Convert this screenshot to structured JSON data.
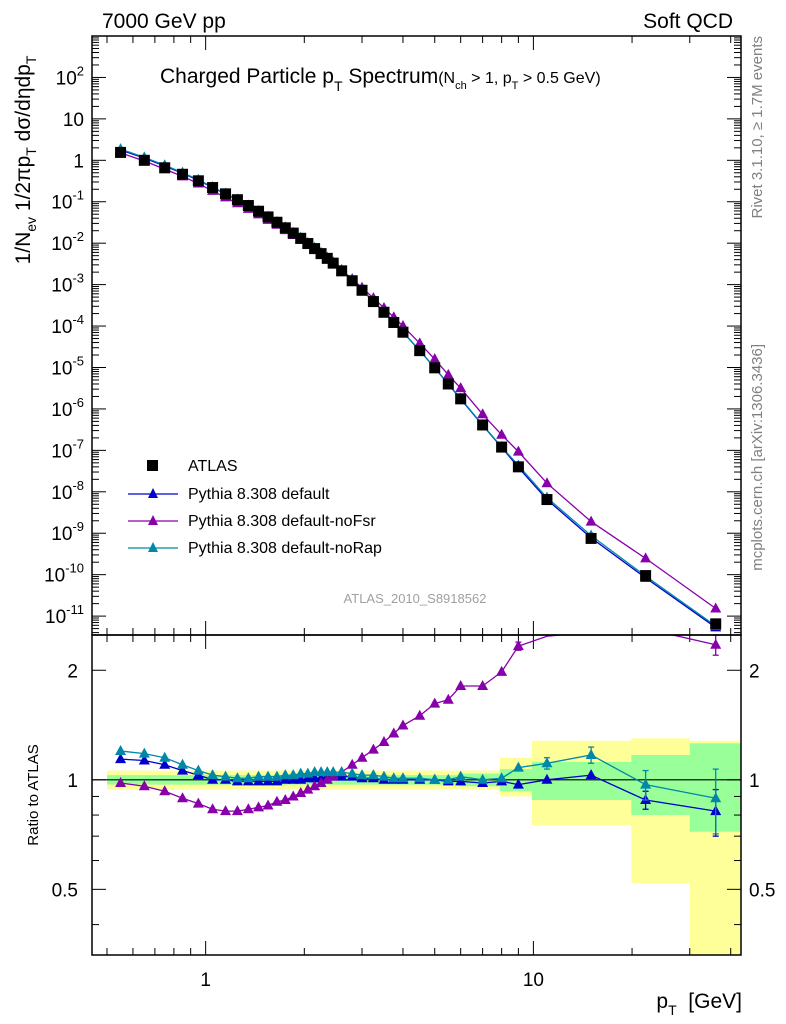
{
  "header": {
    "left": "7000 GeV pp",
    "right": "Soft QCD"
  },
  "side_labels": {
    "top": "Rivet 3.1.10, ≥ 1.7M events",
    "bottom": "mcplots.cern.ch [arXiv:1306.3436]"
  },
  "chart_data": {
    "type": "line",
    "title_main": "Charged Particle p",
    "title_main_sub": "T",
    "title_main_tail": " Spectrum",
    "title_cond_a": "(N",
    "title_cond_a_sub": "ch",
    "title_cond_b": " > 1, p",
    "title_cond_b_sub": "T",
    "title_cond_c": " > 0.5 GeV)",
    "watermark": "ATLAS_2010_S8918562",
    "x_scale": "log",
    "xlim": [
      0.45,
      43
    ],
    "x_tick_labels": [
      {
        "v": 1,
        "label": "1"
      },
      {
        "v": 10,
        "label": "10"
      }
    ],
    "xlabel_main": "p",
    "xlabel_sub": "T",
    "xlabel_tail": "  [GeV]",
    "ylabel_upper": "1/N_ev 1/2πp_T dσ/dηdp_T",
    "ylabel_lower": "Ratio to ATLAS",
    "upper": {
      "y_scale": "log",
      "ylim": [
        3.5e-12,
        1000
      ],
      "y_ticks": [
        {
          "exp": 2,
          "base": "10",
          "sup": "2"
        },
        {
          "exp": 1,
          "base": "10",
          "sup": ""
        },
        {
          "exp": 0,
          "base": "1",
          "sup": ""
        },
        {
          "exp": -1,
          "base": "10",
          "sup": "-1"
        },
        {
          "exp": -2,
          "base": "10",
          "sup": "-2"
        },
        {
          "exp": -3,
          "base": "10",
          "sup": "-3"
        },
        {
          "exp": -4,
          "base": "10",
          "sup": "-4"
        },
        {
          "exp": -5,
          "base": "10",
          "sup": "-5"
        },
        {
          "exp": -6,
          "base": "10",
          "sup": "-6"
        },
        {
          "exp": -7,
          "base": "10",
          "sup": "-7"
        },
        {
          "exp": -8,
          "base": "10",
          "sup": "-8"
        },
        {
          "exp": -9,
          "base": "10",
          "sup": "-9"
        },
        {
          "exp": -10,
          "base": "10",
          "sup": "-10"
        },
        {
          "exp": -11,
          "base": "10",
          "sup": "-11"
        }
      ]
    },
    "lower": {
      "y_scale": "log",
      "ylim": [
        0.33,
        2.5
      ],
      "y_ticks": [
        {
          "v": 2,
          "label": "2"
        },
        {
          "v": 1,
          "label": "1"
        },
        {
          "v": 0.5,
          "label": "0.5"
        }
      ]
    },
    "x": [
      0.55,
      0.65,
      0.75,
      0.85,
      0.95,
      1.05,
      1.15,
      1.25,
      1.35,
      1.45,
      1.55,
      1.65,
      1.75,
      1.85,
      1.95,
      2.05,
      2.15,
      2.25,
      2.35,
      2.45,
      2.6,
      2.8,
      3.0,
      3.25,
      3.5,
      3.75,
      4.0,
      4.5,
      5.0,
      5.5,
      6.0,
      7.0,
      8.0,
      9.0,
      11.0,
      15.0,
      22.0,
      36.0
    ],
    "data_values": [
      1.55,
      1.0,
      0.66,
      0.46,
      0.32,
      0.22,
      0.155,
      0.112,
      0.081,
      0.059,
      0.043,
      0.032,
      0.0235,
      0.0175,
      0.0131,
      0.0098,
      0.0074,
      0.0056,
      0.0043,
      0.0033,
      0.00215,
      0.00124,
      0.00073,
      0.00039,
      0.000215,
      0.000122,
      7.1e-05,
      2.55e-05,
      9.8e-06,
      4e-06,
      1.75e-06,
      4.1e-07,
      1.2e-07,
      4e-08,
      6.5e-09,
      7.5e-10,
      9.5e-11,
      6.5e-12
    ],
    "data_legend": "ATLAS",
    "series": [
      {
        "name": "Pythia 8.308 default",
        "color": "#0000cc",
        "ratio": [
          1.14,
          1.13,
          1.1,
          1.06,
          1.03,
          1.0,
          1.0,
          0.99,
          0.99,
          0.99,
          0.99,
          0.99,
          1.0,
          1.0,
          1.0,
          1.01,
          1.01,
          1.01,
          1.02,
          1.02,
          1.02,
          1.02,
          1.01,
          1.01,
          1.0,
          1.0,
          1.0,
          1.0,
          1.0,
          0.99,
          0.99,
          0.98,
          0.99,
          0.97,
          1.0,
          1.03,
          0.88,
          0.82
        ],
        "err_idx": [
          36,
          37
        ],
        "err": [
          0.05,
          0.12
        ]
      },
      {
        "name": "Pythia 8.308 default-noFsr",
        "color": "#8800aa",
        "ratio": [
          0.98,
          0.96,
          0.93,
          0.89,
          0.86,
          0.83,
          0.82,
          0.82,
          0.83,
          0.84,
          0.85,
          0.87,
          0.88,
          0.9,
          0.92,
          0.94,
          0.96,
          0.98,
          1.0,
          1.02,
          1.05,
          1.1,
          1.15,
          1.21,
          1.27,
          1.34,
          1.41,
          1.5,
          1.62,
          1.66,
          1.81,
          1.81,
          1.98,
          2.33,
          2.48,
          2.55,
          2.6,
          2.35
        ],
        "err_idx": [
          33,
          37
        ],
        "err": [
          0.06,
          0.15
        ]
      },
      {
        "name": "Pythia 8.308 default-noRap",
        "color": "#0088a8",
        "ratio": [
          1.2,
          1.18,
          1.15,
          1.1,
          1.06,
          1.03,
          1.02,
          1.01,
          1.01,
          1.02,
          1.02,
          1.02,
          1.03,
          1.03,
          1.04,
          1.04,
          1.05,
          1.05,
          1.05,
          1.05,
          1.05,
          1.04,
          1.03,
          1.03,
          1.02,
          1.01,
          1.01,
          1.01,
          1.0,
          1.0,
          1.02,
          1.0,
          1.01,
          1.08,
          1.11,
          1.17,
          0.97,
          0.89
        ],
        "err_idx": [
          34,
          35,
          36,
          37
        ],
        "err": [
          0.04,
          0.06,
          0.09,
          0.18
        ]
      }
    ],
    "bands": {
      "edges": [
        0.5,
        0.6,
        0.7,
        0.8,
        0.9,
        1.0,
        1.1,
        1.2,
        1.3,
        1.4,
        1.5,
        1.6,
        1.7,
        1.8,
        1.9,
        2.0,
        2.1,
        2.2,
        2.3,
        2.4,
        2.5,
        2.7,
        2.9,
        3.1,
        3.4,
        3.6,
        3.9,
        4.1,
        4.9,
        5.1,
        5.9,
        6.1,
        7.9,
        8.1,
        9.9,
        10.1,
        19.9,
        20.1,
        30.0,
        43.0
      ],
      "stat_lo": [
        0.97,
        0.97,
        0.97,
        0.97,
        0.97,
        0.97,
        0.97,
        0.97,
        0.97,
        0.97,
        0.97,
        0.97,
        0.97,
        0.97,
        0.97,
        0.97,
        0.97,
        0.97,
        0.97,
        0.97,
        0.97,
        0.97,
        0.97,
        0.97,
        0.97,
        0.97,
        0.97,
        0.97,
        0.97,
        0.97,
        0.96,
        0.96,
        0.93,
        0.93,
        0.88,
        0.88,
        0.8,
        0.8,
        0.72,
        0.72
      ],
      "stat_hi": [
        1.03,
        1.03,
        1.03,
        1.03,
        1.03,
        1.03,
        1.03,
        1.03,
        1.03,
        1.03,
        1.03,
        1.03,
        1.03,
        1.03,
        1.03,
        1.03,
        1.03,
        1.03,
        1.03,
        1.03,
        1.03,
        1.03,
        1.03,
        1.03,
        1.03,
        1.03,
        1.03,
        1.03,
        1.03,
        1.03,
        1.04,
        1.04,
        1.07,
        1.07,
        1.12,
        1.12,
        1.17,
        1.17,
        1.26,
        1.26
      ],
      "tot_lo": [
        0.94,
        0.94,
        0.94,
        0.94,
        0.94,
        0.94,
        0.94,
        0.94,
        0.94,
        0.94,
        0.94,
        0.94,
        0.94,
        0.94,
        0.94,
        0.94,
        0.94,
        0.94,
        0.94,
        0.94,
        0.94,
        0.94,
        0.94,
        0.94,
        0.94,
        0.94,
        0.94,
        0.94,
        0.94,
        0.94,
        0.94,
        0.94,
        0.9,
        0.9,
        0.75,
        0.75,
        0.52,
        0.52,
        0.33,
        0.33
      ],
      "tot_hi": [
        1.06,
        1.06,
        1.06,
        1.06,
        1.06,
        1.06,
        1.06,
        1.06,
        1.06,
        1.06,
        1.06,
        1.06,
        1.06,
        1.06,
        1.06,
        1.06,
        1.06,
        1.06,
        1.06,
        1.06,
        1.06,
        1.06,
        1.06,
        1.06,
        1.06,
        1.06,
        1.06,
        1.06,
        1.06,
        1.06,
        1.06,
        1.06,
        1.15,
        1.15,
        1.28,
        1.28,
        1.3,
        1.3,
        1.28,
        1.28
      ],
      "stat_color": "#99ff99",
      "tot_color": "#ffff99"
    }
  }
}
